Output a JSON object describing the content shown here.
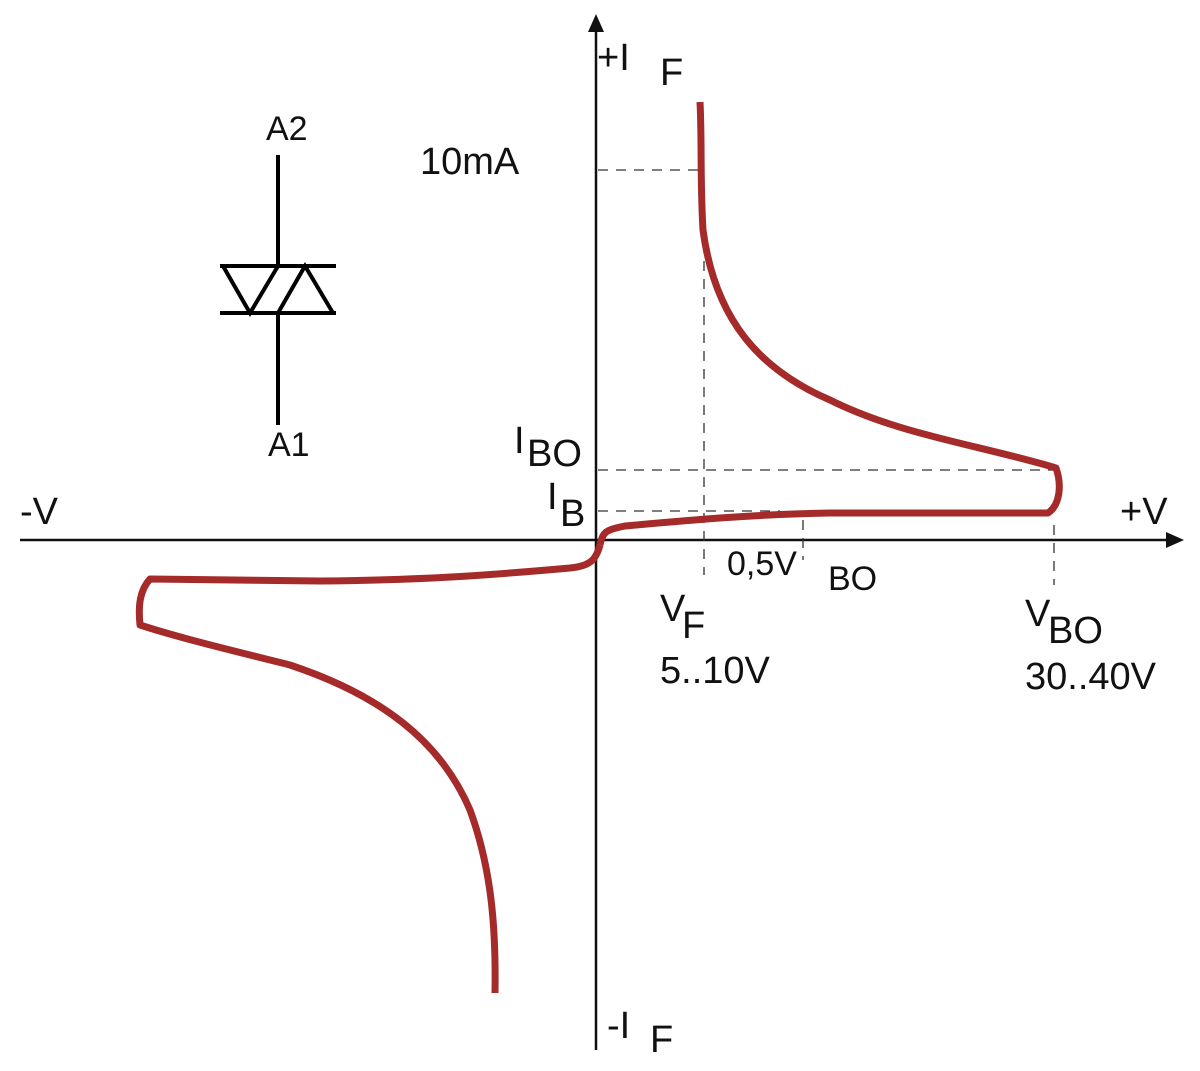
{
  "axes": {
    "x_positive": "+V",
    "x_negative": "-V",
    "y_positive": {
      "symbol": "+I",
      "subscript": "F"
    },
    "y_negative": {
      "symbol": "-I",
      "subscript": "F"
    }
  },
  "symbol": {
    "top": "A2",
    "bottom": "A1"
  },
  "labels": {
    "current": "10mA",
    "i_bo": {
      "symbol": "I",
      "subscript": "BO"
    },
    "i_b": {
      "symbol": "I",
      "subscript": "B"
    },
    "delta_v": {
      "text": "0,5V",
      "subscript": "BO"
    },
    "v_f": {
      "symbol": "V",
      "subscript": "F",
      "range": "5..10V"
    },
    "v_bo": {
      "symbol": "V",
      "subscript": "BO",
      "range": "30..40V"
    }
  }
}
